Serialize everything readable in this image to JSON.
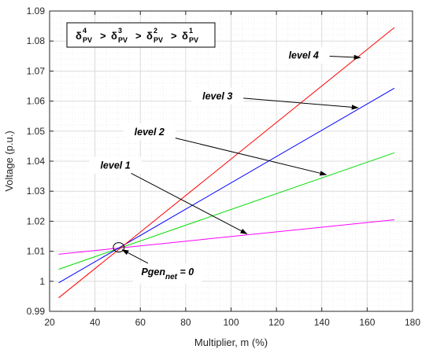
{
  "chart_data": {
    "type": "line",
    "xlabel": "Multiplier, m (%)",
    "ylabel": "Voltage (p.u.)",
    "xlim": [
      20,
      180
    ],
    "ylim": [
      0.99,
      1.09
    ],
    "xticks": [
      20,
      40,
      60,
      80,
      100,
      120,
      140,
      160,
      180
    ],
    "yticks": [
      0.99,
      1,
      1.01,
      1.02,
      1.03,
      1.04,
      1.05,
      1.06,
      1.07,
      1.08,
      1.09
    ],
    "yticklabels": [
      "0.99",
      "1",
      "1.01",
      "1.02",
      "1.03",
      "1.04",
      "1.05",
      "1.06",
      "1.07",
      "1.08",
      "1.09"
    ],
    "grid": true,
    "series": [
      {
        "color": "#ff00ff",
        "x": [
          24,
          172
        ],
        "y": [
          1.009,
          1.0205
        ]
      },
      {
        "color": "#00dd00",
        "x": [
          24,
          172
        ],
        "y": [
          1.004,
          1.0428
        ]
      },
      {
        "color": "#0000ff",
        "x": [
          24,
          172
        ],
        "y": [
          0.9995,
          1.0643
        ]
      },
      {
        "color": "#ff0000",
        "x": [
          24,
          172
        ],
        "y": [
          0.9945,
          1.0845
        ]
      }
    ],
    "annotations": [
      {
        "label": "level 1",
        "tx": 49,
        "ty": 1.0387,
        "ax": 107,
        "ay": 1.0158
      },
      {
        "label": "level 2",
        "tx": 64,
        "ty": 1.0498,
        "ax": 142,
        "ay": 1.0355
      },
      {
        "label": "level 3",
        "tx": 94,
        "ty": 1.0617,
        "ax": 156,
        "ay": 1.0578
      },
      {
        "label": "level 4",
        "tx": 132,
        "ty": 1.0753,
        "ax": 157,
        "ay": 1.0745
      },
      {
        "label": "Pgen",
        "label_sub": "net",
        "label_suffix": " = 0",
        "tx": 72,
        "ty": 1.0026,
        "ax": 52,
        "ay": 1.0105
      }
    ],
    "marker": {
      "x": 50.5,
      "y": 1.0113
    },
    "inequality": {
      "sym": "δ",
      "sub": "PV",
      "sups": [
        "4",
        "3",
        "2",
        "1"
      ],
      "op": " > "
    }
  }
}
